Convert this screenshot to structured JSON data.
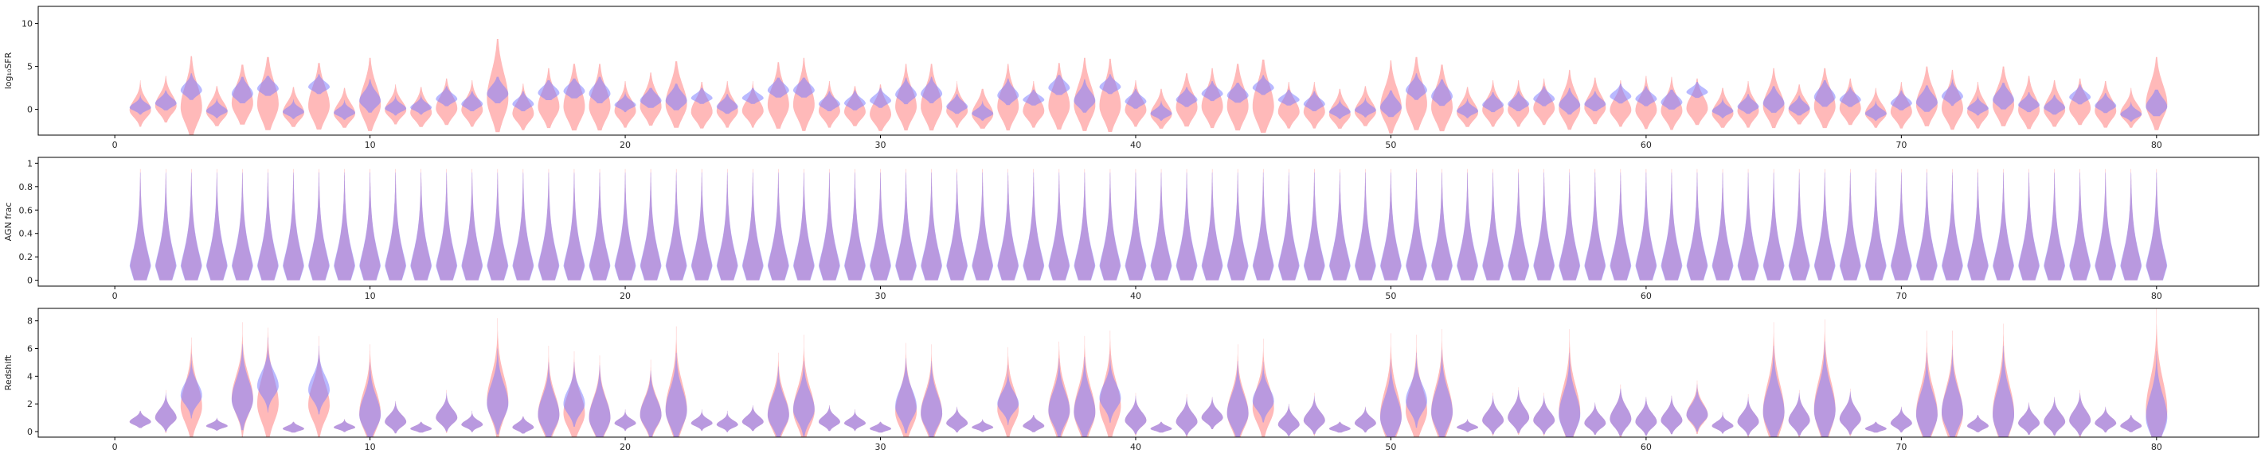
{
  "chart_data": [
    {
      "type": "violin",
      "ylabel": "log₁₀SFR",
      "ylim": [
        -3,
        12
      ],
      "yticks": [
        0,
        5,
        10
      ],
      "xlim": [
        -3,
        84
      ],
      "xticks": [
        0,
        10,
        20,
        30,
        40,
        50,
        60,
        70,
        80
      ],
      "categories_x": [
        1,
        80
      ],
      "series": [
        {
          "color": "#ff7f7f",
          "median": [
            -0.1,
            0.4,
            0.2,
            -0.3,
            0.7,
            0.6,
            -0.4,
            0.4,
            -0.5,
            0.5,
            -0.1,
            -0.4,
            0.1,
            -0.1,
            1.2,
            -0.5,
            0.3,
            0.3,
            0.3,
            -0.2,
            0.3,
            0.6,
            -0.3,
            -0.2,
            -0.2,
            0.5,
            0.5,
            -0.2,
            -0.3,
            -0.6,
            0.3,
            0.3,
            -0.2,
            -0.6,
            0.3,
            -0.2,
            0.4,
            0.5,
            0.4,
            -0.1,
            -0.6,
            0.2,
            0.3,
            0.3,
            0.3,
            -0.3,
            -0.3,
            -0.6,
            -0.3,
            0.2,
            0.6,
            0.2,
            -0.4,
            -0.1,
            -0.1,
            0.1,
            0.1,
            0.2,
            -0.1,
            -0.1,
            -0.2,
            0.1,
            -0.5,
            -0.2,
            0.3,
            -0.1,
            0.3,
            0.1,
            -0.5,
            -0.3,
            0.5,
            0.1,
            -0.3,
            0.5,
            -0.1,
            -0.1,
            0.1,
            -0.2,
            -0.5,
            0.6
          ],
          "spread": [
            1.2,
            1.3,
            2.5,
            1.2,
            2.0,
            2.5,
            1.2,
            2.2,
            1.2,
            2.3,
            1.1,
            1.2,
            1.4,
            1.3,
            3.0,
            1.3,
            1.8,
            2.2,
            2.1,
            1.3,
            1.6,
            2.2,
            1.4,
            1.3,
            1.2,
            2.1,
            2.2,
            1.3,
            1.2,
            1.4,
            2.0,
            2.1,
            1.2,
            1.3,
            2.0,
            1.3,
            2.1,
            2.3,
            2.3,
            1.3,
            1.2,
            1.7,
            1.8,
            2.2,
            2.5,
            1.3,
            1.3,
            1.2,
            1.2,
            2.2,
            2.4,
            2.2,
            1.2,
            1.3,
            1.3,
            1.3,
            1.8,
            1.4,
            1.3,
            1.5,
            1.5,
            1.4,
            1.2,
            1.3,
            1.8,
            1.2,
            1.9,
            1.4,
            1.1,
            1.3,
            1.9,
            1.8,
            1.3,
            1.9,
            1.6,
            1.4,
            1.4,
            1.4,
            1.1,
            2.3
          ],
          "extent": [
            3.5,
            3.5,
            6.0,
            3.0,
            4.5,
            5.5,
            3.0,
            5.0,
            3.0,
            5.5,
            3.0,
            3.0,
            3.5,
            3.5,
            7.0,
            3.5,
            4.5,
            5.0,
            5.0,
            3.5,
            4.0,
            5.0,
            3.5,
            3.5,
            3.5,
            5.0,
            5.5,
            3.5,
            3.0,
            3.5,
            5.0,
            5.0,
            3.5,
            3.0,
            5.0,
            3.5,
            5.0,
            5.5,
            5.5,
            3.5,
            3.0,
            4.0,
            4.5,
            5.0,
            5.5,
            3.5,
            3.5,
            3.0,
            3.0,
            5.5,
            5.5,
            5.0,
            3.0,
            3.5,
            3.5,
            3.5,
            4.5,
            3.5,
            3.5,
            4.0,
            4.0,
            3.5,
            3.0,
            3.5,
            4.5,
            3.0,
            4.5,
            3.5,
            3.0,
            3.5,
            4.5,
            4.5,
            3.5,
            4.5,
            4.0,
            3.5,
            3.5,
            3.5,
            3.0,
            5.5
          ]
        },
        {
          "color": "#7f7fff",
          "median": [
            0.2,
            0.7,
            2.2,
            -0.2,
            1.8,
            2.4,
            -0.3,
            2.6,
            -0.4,
            1.0,
            0.1,
            0.2,
            1.2,
            0.6,
            1.8,
            0.6,
            1.9,
            2.1,
            1.8,
            0.5,
            1.0,
            1.0,
            1.3,
            0.3,
            1.3,
            2.2,
            2.2,
            0.6,
            0.7,
            1.0,
            1.7,
            1.8,
            0.3,
            -0.5,
            1.6,
            1.1,
            2.5,
            1.0,
            2.6,
            0.9,
            -0.5,
            1.1,
            1.8,
            1.6,
            2.5,
            1.1,
            0.6,
            -0.3,
            -0.1,
            0.2,
            2.2,
            1.5,
            -0.2,
            0.5,
            0.6,
            1.2,
            0.5,
            0.6,
            1.5,
            1.2,
            0.8,
            2.0,
            -0.2,
            0.3,
            0.7,
            0.1,
            1.4,
            1.1,
            -0.5,
            0.7,
            0.8,
            1.5,
            0.1,
            1.1,
            0.5,
            0.2,
            1.4,
            0.4,
            -0.6,
            0.3
          ],
          "spread": [
            0.5,
            0.6,
            0.8,
            0.5,
            0.9,
            0.7,
            0.5,
            0.6,
            0.5,
            1.0,
            0.5,
            0.5,
            0.6,
            0.6,
            0.9,
            0.6,
            0.7,
            0.7,
            0.9,
            0.5,
            0.7,
            0.9,
            0.5,
            0.6,
            0.5,
            0.7,
            0.7,
            0.6,
            0.6,
            0.6,
            0.8,
            0.8,
            0.6,
            0.5,
            0.8,
            0.5,
            0.7,
            1.0,
            0.6,
            0.6,
            0.5,
            0.6,
            0.6,
            0.7,
            0.6,
            0.5,
            0.6,
            0.5,
            0.5,
            0.9,
            0.8,
            0.9,
            0.5,
            0.6,
            0.6,
            0.6,
            0.8,
            0.6,
            0.6,
            0.6,
            0.7,
            0.5,
            0.5,
            0.6,
            0.9,
            0.6,
            0.9,
            0.6,
            0.5,
            0.6,
            0.9,
            0.7,
            0.5,
            0.9,
            0.6,
            0.6,
            0.6,
            0.6,
            0.5,
            1.0
          ],
          "extent": [
            1.5,
            1.5,
            2.0,
            1.5,
            2.0,
            1.5,
            1.5,
            1.5,
            1.5,
            2.5,
            1.5,
            1.5,
            1.5,
            1.5,
            2.0,
            1.5,
            1.5,
            1.5,
            2.0,
            1.5,
            1.5,
            2.0,
            1.2,
            1.5,
            1.2,
            1.5,
            1.5,
            1.5,
            1.5,
            1.5,
            2.0,
            2.0,
            1.5,
            1.5,
            2.0,
            1.2,
            1.5,
            2.5,
            1.5,
            1.5,
            1.5,
            1.5,
            1.5,
            1.5,
            1.5,
            1.2,
            1.5,
            1.5,
            1.5,
            2.0,
            2.0,
            2.0,
            1.5,
            1.5,
            1.5,
            1.5,
            2.0,
            1.5,
            1.5,
            1.5,
            1.5,
            1.2,
            1.5,
            1.5,
            2.0,
            1.5,
            2.0,
            1.5,
            1.5,
            1.5,
            2.0,
            2.0,
            1.5,
            2.0,
            1.5,
            1.5,
            1.5,
            1.5,
            1.5,
            2.0
          ]
        }
      ]
    },
    {
      "type": "violin",
      "ylabel": "AGN frac",
      "ylim": [
        -0.05,
        1.05
      ],
      "yticks": [
        0.0,
        0.2,
        0.4,
        0.6,
        0.8,
        1.0
      ],
      "xlim": [
        -3,
        84
      ],
      "xticks": [
        0,
        10,
        20,
        30,
        40,
        50,
        60,
        70,
        80
      ],
      "categories_x": [
        1,
        80
      ],
      "series": [
        {
          "color": "#ff7f7f",
          "mode": 0.12,
          "max": 0.95
        },
        {
          "color": "#7f7fff",
          "mode": 0.12,
          "max": 0.92
        }
      ]
    },
    {
      "type": "violin",
      "ylabel": "Redshift",
      "ylim": [
        -0.4,
        8.9
      ],
      "yticks": [
        0,
        2,
        4,
        6,
        8
      ],
      "xlim": [
        -3,
        84
      ],
      "xticks": [
        0,
        10,
        20,
        30,
        40,
        50,
        60,
        70,
        80
      ],
      "categories_x": [
        1,
        80
      ],
      "series": [
        {
          "color": "#ff7f7f",
          "median": [
            0.7,
            1.0,
            1.8,
            0.4,
            2.4,
            2.0,
            0.2,
            1.9,
            0.3,
            1.3,
            0.7,
            0.2,
            1.0,
            0.5,
            2.2,
            0.3,
            1.2,
            1.3,
            1.0,
            0.6,
            1.2,
            1.6,
            0.6,
            0.5,
            0.7,
            1.2,
            1.5,
            0.7,
            0.6,
            0.2,
            1.4,
            1.3,
            0.6,
            0.3,
            1.6,
            0.4,
            1.5,
            1.4,
            1.8,
            0.8,
            0.2,
            0.7,
            1.0,
            1.3,
            1.7,
            0.5,
            0.8,
            0.2,
            0.6,
            1.1,
            1.5,
            1.4,
            0.3,
            0.8,
            1.0,
            0.8,
            1.4,
            0.6,
            0.9,
            0.7,
            0.8,
            1.2,
            0.4,
            0.7,
            1.4,
            0.8,
            1.6,
            0.9,
            0.2,
            0.6,
            1.3,
            1.3,
            0.4,
            1.3,
            0.6,
            0.7,
            0.8,
            0.6,
            0.4,
            1.5
          ],
          "spread": [
            0.3,
            0.6,
            1.6,
            0.2,
            1.6,
            1.8,
            0.2,
            1.5,
            0.2,
            1.6,
            0.5,
            0.2,
            0.6,
            0.3,
            1.8,
            0.3,
            1.5,
            1.4,
            1.4,
            0.3,
            1.2,
            1.8,
            0.3,
            0.3,
            0.4,
            1.4,
            1.6,
            0.4,
            0.3,
            0.2,
            1.5,
            1.5,
            0.4,
            0.2,
            1.4,
            0.3,
            1.6,
            1.7,
            1.7,
            0.6,
            0.2,
            0.6,
            0.5,
            1.5,
            1.5,
            0.5,
            0.6,
            0.2,
            0.4,
            1.8,
            1.6,
            1.8,
            0.2,
            0.6,
            0.7,
            0.6,
            1.8,
            0.5,
            0.8,
            0.6,
            0.6,
            0.8,
            0.3,
            0.6,
            2.0,
            0.7,
            2.0,
            0.7,
            0.2,
            0.4,
            1.8,
            1.8,
            0.3,
            2.0,
            0.5,
            0.6,
            0.7,
            0.4,
            0.3,
            2.2
          ],
          "extent": [
            0.8,
            2.0,
            5.0,
            0.6,
            5.5,
            5.5,
            0.5,
            5.0,
            0.6,
            5.0,
            1.5,
            0.5,
            2.0,
            1.0,
            6.0,
            0.8,
            5.0,
            4.5,
            4.5,
            1.0,
            4.0,
            6.0,
            1.0,
            1.0,
            1.2,
            4.5,
            5.5,
            1.2,
            1.0,
            0.5,
            5.0,
            5.0,
            1.2,
            0.6,
            4.5,
            0.8,
            5.0,
            5.5,
            5.5,
            2.0,
            0.5,
            2.0,
            1.5,
            5.0,
            5.0,
            1.5,
            2.0,
            0.5,
            1.2,
            6.0,
            5.5,
            6.0,
            0.6,
            2.0,
            2.2,
            2.0,
            6.0,
            1.5,
            2.5,
            1.8,
            1.8,
            2.5,
            1.0,
            2.0,
            6.5,
            2.2,
            6.5,
            2.2,
            0.5,
            1.2,
            6.0,
            6.0,
            0.8,
            6.5,
            1.5,
            1.8,
            2.2,
            1.2,
            0.8,
            7.5
          ]
        },
        {
          "color": "#7f7fff",
          "median": [
            0.7,
            1.0,
            2.6,
            0.4,
            2.3,
            3.3,
            0.2,
            3.0,
            0.3,
            1.2,
            0.7,
            0.2,
            1.0,
            0.5,
            2.0,
            0.3,
            1.2,
            2.0,
            1.0,
            0.6,
            1.2,
            1.5,
            0.6,
            0.5,
            0.7,
            1.2,
            1.6,
            0.7,
            0.6,
            0.2,
            1.8,
            1.3,
            0.6,
            0.3,
            2.0,
            0.4,
            1.5,
            1.4,
            2.4,
            0.8,
            0.2,
            0.7,
            1.0,
            1.3,
            2.2,
            0.5,
            0.8,
            0.2,
            0.6,
            1.0,
            2.2,
            1.4,
            0.3,
            0.8,
            1.0,
            0.8,
            1.2,
            0.6,
            0.9,
            0.7,
            0.8,
            1.2,
            0.4,
            0.7,
            1.4,
            0.8,
            1.5,
            0.9,
            0.2,
            0.6,
            1.2,
            1.4,
            0.4,
            1.2,
            0.6,
            0.7,
            0.8,
            0.6,
            0.4,
            1.0
          ],
          "spread": [
            0.3,
            0.6,
            0.9,
            0.2,
            1.4,
            1.0,
            0.2,
            1.0,
            0.2,
            1.3,
            0.5,
            0.2,
            0.6,
            0.3,
            1.4,
            0.3,
            1.3,
            1.0,
            1.3,
            0.3,
            1.1,
            1.5,
            0.3,
            0.3,
            0.4,
            1.2,
            1.2,
            0.4,
            0.3,
            0.2,
            1.2,
            1.3,
            0.4,
            0.2,
            0.8,
            0.3,
            1.3,
            1.4,
            1.0,
            0.6,
            0.2,
            0.6,
            0.5,
            1.3,
            0.9,
            0.5,
            0.6,
            0.2,
            0.4,
            1.4,
            1.1,
            1.5,
            0.2,
            0.6,
            0.7,
            0.6,
            1.5,
            0.5,
            0.8,
            0.6,
            0.6,
            0.7,
            0.3,
            0.6,
            1.6,
            0.7,
            1.7,
            0.7,
            0.2,
            0.4,
            1.5,
            1.5,
            0.3,
            1.7,
            0.5,
            0.6,
            0.7,
            0.4,
            0.3,
            1.6
          ],
          "extent": [
            0.8,
            1.8,
            3.0,
            0.6,
            4.0,
            3.5,
            0.5,
            3.2,
            0.6,
            3.8,
            1.5,
            0.5,
            1.8,
            1.0,
            4.0,
            0.8,
            3.8,
            3.0,
            3.8,
            1.0,
            3.2,
            4.2,
            1.0,
            1.0,
            1.2,
            3.5,
            3.5,
            1.2,
            1.0,
            0.5,
            3.5,
            3.8,
            1.2,
            0.6,
            2.8,
            0.8,
            3.8,
            4.0,
            3.2,
            1.8,
            0.5,
            1.8,
            1.5,
            3.8,
            2.8,
            1.5,
            1.8,
            0.5,
            1.2,
            4.2,
            3.5,
            4.5,
            0.6,
            1.8,
            2.0,
            1.8,
            4.5,
            1.5,
            2.2,
            1.8,
            1.8,
            2.2,
            1.0,
            1.8,
            4.8,
            2.0,
            5.0,
            2.0,
            0.5,
            1.2,
            4.5,
            4.5,
            0.8,
            5.0,
            1.5,
            1.8,
            2.0,
            1.2,
            0.8,
            4.8
          ]
        }
      ]
    }
  ]
}
